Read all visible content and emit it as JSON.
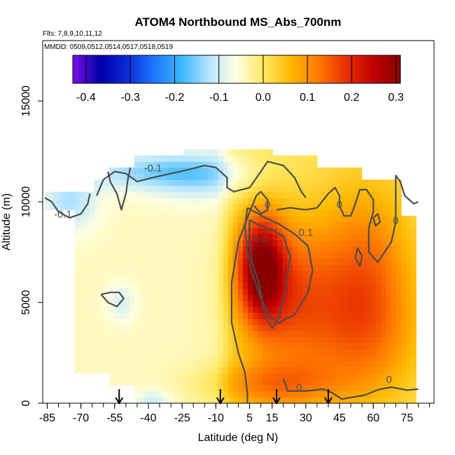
{
  "chart_data": {
    "type": "heatmap",
    "title": "ATOM4 Northbound MS_Abs_700nm",
    "subtitle_flights": "Flts: 7,8,9,10,11,12",
    "subtitle_dates": "MMDD: 0509,0512,0514,0517,0518,0519",
    "xlabel": "Latitude (deg N)",
    "ylabel": "Altitude (m)",
    "xlim": [
      -87,
      87
    ],
    "ylim": [
      0,
      18000
    ],
    "x_ticks": [
      -85,
      -70,
      -55,
      -40,
      -25,
      -10,
      5,
      15,
      30,
      45,
      60,
      75
    ],
    "x_tick_labels": [
      "-85",
      "-70",
      "-55",
      "-40",
      "-25",
      "-10",
      "5",
      "15",
      "30",
      "45",
      "60",
      "75"
    ],
    "y_ticks": [
      0,
      5000,
      10000,
      15000
    ],
    "y_tick_labels": [
      "0",
      "5000",
      "10000",
      "15000"
    ],
    "colorbar": {
      "range": [
        -0.43,
        0.31
      ],
      "ticks": [
        -0.4,
        -0.3,
        -0.2,
        -0.1,
        0.0,
        0.1,
        0.2,
        0.3
      ],
      "tick_labels": [
        "-0.4",
        "-0.3",
        "-0.2",
        "-0.1",
        "0.0",
        "0.1",
        "0.2",
        "0.3"
      ],
      "colors": [
        "#7a10e8",
        "#0000a8",
        "#0a2bd8",
        "#1e78ff",
        "#3cb8ff",
        "#b8e6ff",
        "#ffffe0",
        "#ffe860",
        "#ffb800",
        "#ff7800",
        "#e83000",
        "#c00000",
        "#8a0000"
      ]
    },
    "contour_labels": [
      {
        "text": "-0.1",
        "lat": -38,
        "alt": 11500
      },
      {
        "text": "-0.1",
        "lat": -78,
        "alt": 9200
      },
      {
        "text": "0",
        "lat": 13,
        "alt": 9700
      },
      {
        "text": "0",
        "lat": 45,
        "alt": 9700
      },
      {
        "text": "0.1",
        "lat": 30,
        "alt": 8300
      },
      {
        "text": "0.2",
        "lat": 10,
        "alt": 8000
      },
      {
        "text": "0",
        "lat": 70,
        "alt": 8900
      },
      {
        "text": "0",
        "lat": 27,
        "alt": 600
      },
      {
        "text": "0",
        "lat": 67,
        "alt": 1000
      }
    ],
    "flight_markers_lat": [
      -53,
      -8,
      17,
      40
    ]
  }
}
